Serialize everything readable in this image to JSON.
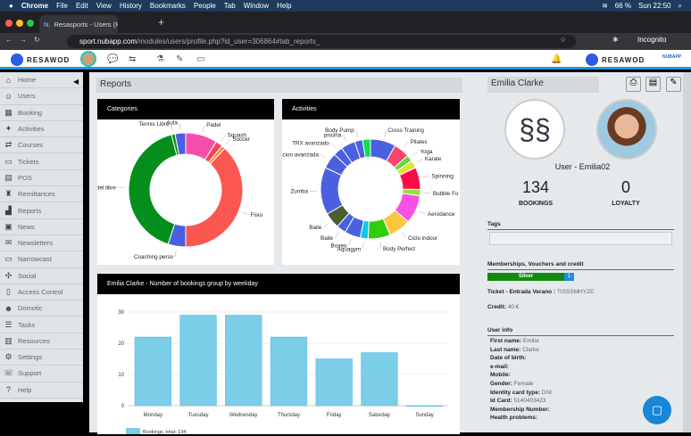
{
  "os_menu": {
    "app": "Chrome",
    "items": [
      "File",
      "Edit",
      "View",
      "History",
      "Bookmarks",
      "People",
      "Tab",
      "Window",
      "Help"
    ],
    "battery": "66 %",
    "clock": "Sun 22:50"
  },
  "browser": {
    "tab_title": "Resasports - Users (Resasport",
    "url_domain": "sport.nubapp.com",
    "url_path": "/modules/users/profile.php?id_user=306864#tab_reports_",
    "profile": "Incognito"
  },
  "header": {
    "brand": "RESAWOD",
    "brand2": "NUBAPP"
  },
  "sidebar": {
    "items": [
      {
        "label": "Home",
        "icon": "home-icon"
      },
      {
        "label": "Users",
        "icon": "users-icon"
      },
      {
        "label": "Booking",
        "icon": "calendar-icon"
      },
      {
        "label": "Activities",
        "icon": "activity-icon"
      },
      {
        "label": "Courses",
        "icon": "courses-icon"
      },
      {
        "label": "Tickets",
        "icon": "ticket-icon"
      },
      {
        "label": "POS",
        "icon": "cash-register-icon"
      },
      {
        "label": "Remittances",
        "icon": "bank-icon"
      },
      {
        "label": "Reports",
        "icon": "chart-icon"
      },
      {
        "label": "News",
        "icon": "news-icon"
      },
      {
        "label": "Newsletters",
        "icon": "mail-icon"
      },
      {
        "label": "Narrowcast",
        "icon": "monitor-icon"
      },
      {
        "label": "Social",
        "icon": "network-icon"
      },
      {
        "label": "Access Control",
        "icon": "door-icon"
      },
      {
        "label": "Domotic",
        "icon": "robot-icon"
      },
      {
        "label": "Tasks",
        "icon": "list-icon"
      },
      {
        "label": "Resources",
        "icon": "resources-icon"
      },
      {
        "label": "Settings",
        "icon": "gear-icon"
      },
      {
        "label": "Support",
        "icon": "support-icon"
      },
      {
        "label": "Help",
        "icon": "help-icon"
      }
    ]
  },
  "main": {
    "title": "Reports"
  },
  "chart_data": [
    {
      "type": "pie",
      "title": "Categories",
      "donut": true,
      "categories": [
        "Padel",
        "Squash",
        "Soccer",
        "Fisio",
        "Coaching perso",
        "Padel libre",
        "Tennis Libre",
        "Aula"
      ],
      "values": [
        9,
        2,
        1,
        38,
        5,
        41,
        1,
        3
      ],
      "colors": [
        "#f64fab",
        "#f2445a",
        "#f08a2a",
        "#fa5750",
        "#4a60e0",
        "#048f1c",
        "#048f1c",
        "#4a60e0"
      ]
    },
    {
      "type": "pie",
      "title": "Activities",
      "donut": true,
      "categories": [
        "Cross Training",
        "Pilates",
        "Yoga",
        "Karate",
        "Spinning",
        "Bubble Fo",
        "Aerodance",
        "Ciclo indoor",
        "Body Perfect",
        "Aquagym",
        "Boxeo",
        "Baile",
        "Baile",
        "Zumba",
        "acion avanzada",
        "TRX avanzado",
        "piscina",
        "Body Pump",
        ""
      ],
      "values": [
        8,
        5,
        2,
        2.5,
        7,
        2,
        9,
        7,
        7,
        2.5,
        5,
        3,
        5,
        15,
        5,
        3,
        4.5,
        2.5,
        2.5
      ],
      "colors": [
        "#4a60e0",
        "#f6466e",
        "#5cdc3a",
        "#e2e03a",
        "#fb0a44",
        "#8ee23a",
        "#fa4fe6",
        "#fdc640",
        "#2fce06",
        "#08c8e6",
        "#4a60e0",
        "#4a60e0",
        "#4a5e30",
        "#4a60e0",
        "#4a60e0",
        "#4a60e0",
        "#4a60e0",
        "#4a60e0",
        "#0ae050"
      ]
    },
    {
      "type": "bar",
      "title": "Emilia Clarke - Number of bookings group by weekday",
      "categories": [
        "Monday",
        "Tuesday",
        "Wednesday",
        "Thursday",
        "Friday",
        "Saturday",
        "Sunday"
      ],
      "series": [
        {
          "name": "Bookings, total: 134",
          "values": [
            22,
            29,
            29,
            22,
            15,
            17,
            0
          ]
        }
      ],
      "ylim": [
        0,
        30
      ],
      "yticks": [
        0,
        10,
        20,
        30
      ],
      "color": "#7ccde8",
      "grid": true,
      "legend": "bottom-left"
    }
  ],
  "profile": {
    "name": "Emilia Clarke",
    "username": "User - Emilia02",
    "bookings": "134",
    "bookings_label": "BOOKINGS",
    "loyalty": "0",
    "loyalty_label": "LOYALTY",
    "tags_label": "Tags",
    "memberships_label": "Memberships, Vouchers and credit",
    "membership": "Silver",
    "membership_count": "1",
    "ticket_label": "Ticket - Entrada Verano :",
    "ticket_value": "TISSSMHYZE",
    "credit_label": "Credit:",
    "credit_value": "40 €",
    "userinfo_label": "User info",
    "fields": [
      {
        "k": "First name:",
        "v": "Emilia"
      },
      {
        "k": "Last name:",
        "v": "Clarke"
      },
      {
        "k": "Date of birth:",
        "v": ""
      },
      {
        "k": "e-mail:",
        "v": ""
      },
      {
        "k": "Mobile:",
        "v": ""
      },
      {
        "k": "Gender:",
        "v": "Female"
      },
      {
        "k": "Identity card type:",
        "v": "DNI"
      },
      {
        "k": "Id Card:",
        "v": "5140403423"
      },
      {
        "k": "Membership Number:",
        "v": ""
      },
      {
        "k": "Health problems:",
        "v": ""
      }
    ]
  }
}
